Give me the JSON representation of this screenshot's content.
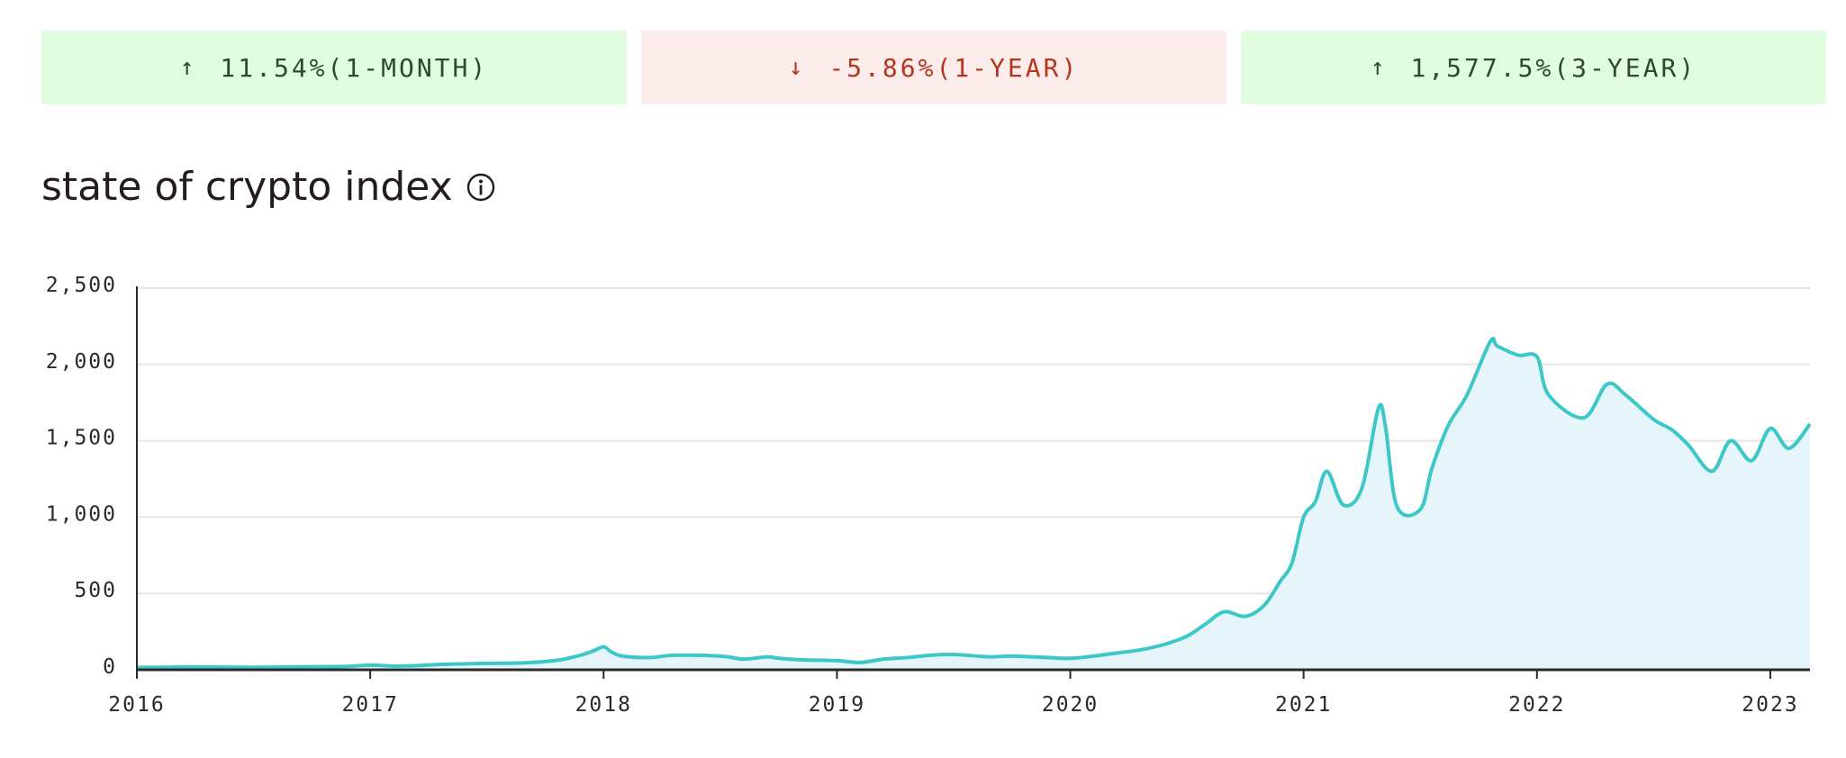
{
  "stats": [
    {
      "direction": "up",
      "arrow": "↑",
      "text": "11.54%(1-MONTH)"
    },
    {
      "direction": "down",
      "arrow": "↓",
      "text": "-5.86%(1-YEAR)"
    },
    {
      "direction": "up",
      "arrow": "↑",
      "text": "1,577.5%(3-YEAR)"
    }
  ],
  "title": "state of crypto index",
  "colors": {
    "up_bg": "#e2fce0",
    "up_text": "#2f4a2a",
    "down_bg": "#fdecec",
    "down_text": "#b5371a",
    "line": "#3cc8c8",
    "fill": "#e6f5fa"
  },
  "chart_data": {
    "type": "area",
    "title": "state of crypto index",
    "xlabel": "",
    "ylabel": "",
    "xlim": [
      2016,
      2023.17
    ],
    "ylim": [
      0,
      2500
    ],
    "grid": true,
    "x_ticks": [
      2016,
      2017,
      2018,
      2019,
      2020,
      2021,
      2022,
      2023
    ],
    "x_tick_labels": [
      "2016",
      "2017",
      "2018",
      "2019",
      "2020",
      "2021",
      "2022",
      "2023"
    ],
    "y_ticks": [
      0,
      500,
      1000,
      1500,
      2000,
      2500
    ],
    "y_tick_labels": [
      "0",
      "500",
      "1,000",
      "1,500",
      "2,000",
      "2,500"
    ],
    "x": [
      2016.0,
      2016.25,
      2016.5,
      2016.75,
      2016.9,
      2017.0,
      2017.1,
      2017.2,
      2017.3,
      2017.5,
      2017.65,
      2017.8,
      2017.9,
      2017.95,
      2018.0,
      2018.03,
      2018.08,
      2018.2,
      2018.3,
      2018.5,
      2018.6,
      2018.7,
      2018.75,
      2018.85,
      2019.0,
      2019.1,
      2019.2,
      2019.3,
      2019.4,
      2019.5,
      2019.65,
      2019.75,
      2019.9,
      2020.0,
      2020.1,
      2020.2,
      2020.3,
      2020.4,
      2020.5,
      2020.58,
      2020.66,
      2020.75,
      2020.83,
      2020.9,
      2020.95,
      2021.0,
      2021.05,
      2021.1,
      2021.17,
      2021.25,
      2021.32,
      2021.35,
      2021.4,
      2021.5,
      2021.55,
      2021.62,
      2021.7,
      2021.8,
      2021.83,
      2021.92,
      2022.0,
      2022.05,
      2022.2,
      2022.3,
      2022.38,
      2022.5,
      2022.58,
      2022.65,
      2022.75,
      2022.83,
      2022.92,
      2023.0,
      2023.08,
      2023.17
    ],
    "y": [
      15,
      18,
      16,
      20,
      22,
      30,
      24,
      27,
      35,
      42,
      45,
      62,
      95,
      120,
      150,
      120,
      90,
      80,
      95,
      90,
      70,
      85,
      75,
      65,
      60,
      48,
      70,
      80,
      95,
      100,
      85,
      90,
      80,
      75,
      90,
      110,
      130,
      165,
      220,
      300,
      380,
      350,
      420,
      580,
      700,
      1000,
      1100,
      1300,
      1080,
      1190,
      1710,
      1600,
      1070,
      1050,
      1320,
      1600,
      1800,
      2150,
      2120,
      2060,
      2050,
      1800,
      1650,
      1870,
      1800,
      1640,
      1570,
      1470,
      1300,
      1500,
      1370,
      1580,
      1450,
      1610
    ]
  }
}
